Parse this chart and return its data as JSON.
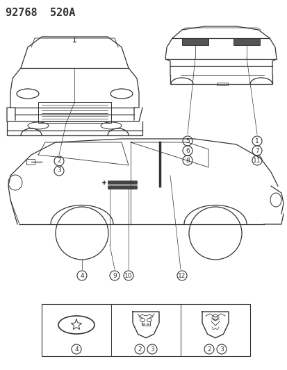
{
  "title": "92768  520A",
  "background_color": "#ffffff",
  "line_color": "#333333",
  "title_fontsize": 11
}
